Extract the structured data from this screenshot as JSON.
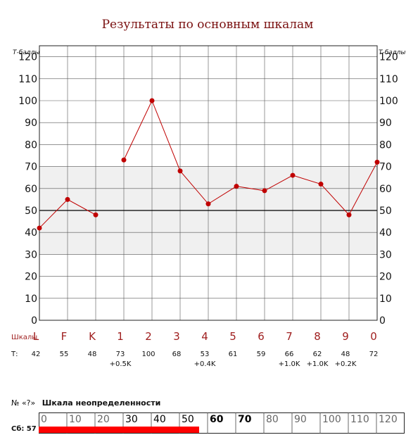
{
  "chart_data": {
    "type": "line",
    "title": "Результаты по основным шкалам",
    "ylabel_left": "Т-баллы",
    "ylabel_right": "Т-баллы",
    "xlabel": "Шкалы",
    "ylim": [
      0,
      125
    ],
    "yticks": [
      0,
      10,
      20,
      30,
      40,
      50,
      60,
      70,
      80,
      90,
      100,
      110,
      120
    ],
    "normal_band": [
      30,
      70
    ],
    "mean_line": 50,
    "categories": [
      "L",
      "F",
      "K",
      "1",
      "2",
      "3",
      "4",
      "5",
      "6",
      "7",
      "8",
      "9",
      "0"
    ],
    "values": [
      42,
      55,
      48,
      73,
      100,
      68,
      53,
      61,
      59,
      66,
      62,
      48,
      72
    ],
    "segments": [
      [
        0,
        2
      ],
      [
        3,
        12
      ]
    ],
    "t_row_label": "Т:",
    "t_values": [
      "42",
      "55",
      "48",
      "73",
      "100",
      "68",
      "53",
      "61",
      "59",
      "66",
      "62",
      "48",
      "72"
    ],
    "corrections": [
      "",
      "",
      "",
      "+0.5K",
      "",
      "",
      "+0.4K",
      "",
      "",
      "+1.0K",
      "+1.0K",
      "+0.2K",
      ""
    ],
    "line_color": "#c00000",
    "band_color": "#f0f0f0",
    "grid_color": "#555555"
  },
  "uncertainty": {
    "number_label": "№",
    "code_label": "«?»",
    "title": "Шкала неопределенности",
    "score_label": "Сб: 57",
    "value": 57,
    "scale_ticks": [
      "0",
      "10",
      "20",
      "30",
      "40",
      "50",
      "60",
      "70",
      "80",
      "90",
      "100",
      "110",
      "120"
    ],
    "bar_color": "#ff0000"
  }
}
